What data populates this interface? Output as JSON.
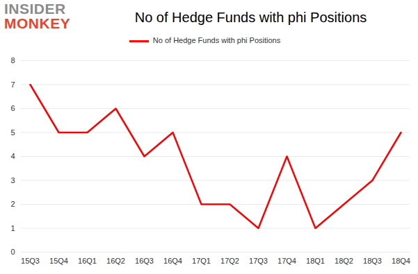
{
  "chart_data": {
    "type": "line",
    "title": "No of Hedge Funds with phi Positions",
    "annotations": [
      "INSIDER",
      "MONKEY"
    ],
    "categories": [
      "15Q3",
      "15Q4",
      "16Q1",
      "16Q2",
      "16Q3",
      "16Q4",
      "17Q1",
      "17Q2",
      "17Q3",
      "17Q4",
      "18Q1",
      "18Q2",
      "18Q3",
      "18Q4"
    ],
    "series": [
      {
        "name": "No of Hedge Funds with phi Positions",
        "color": "#ff0000",
        "values": [
          7,
          5,
          5,
          6,
          4,
          5,
          2,
          2,
          1,
          4,
          1,
          2,
          3,
          5
        ]
      }
    ],
    "ylim": [
      0,
      8
    ],
    "yticks": [
      0,
      1,
      2,
      3,
      4,
      5,
      6,
      7,
      8
    ],
    "grid": true,
    "legend": "top"
  }
}
